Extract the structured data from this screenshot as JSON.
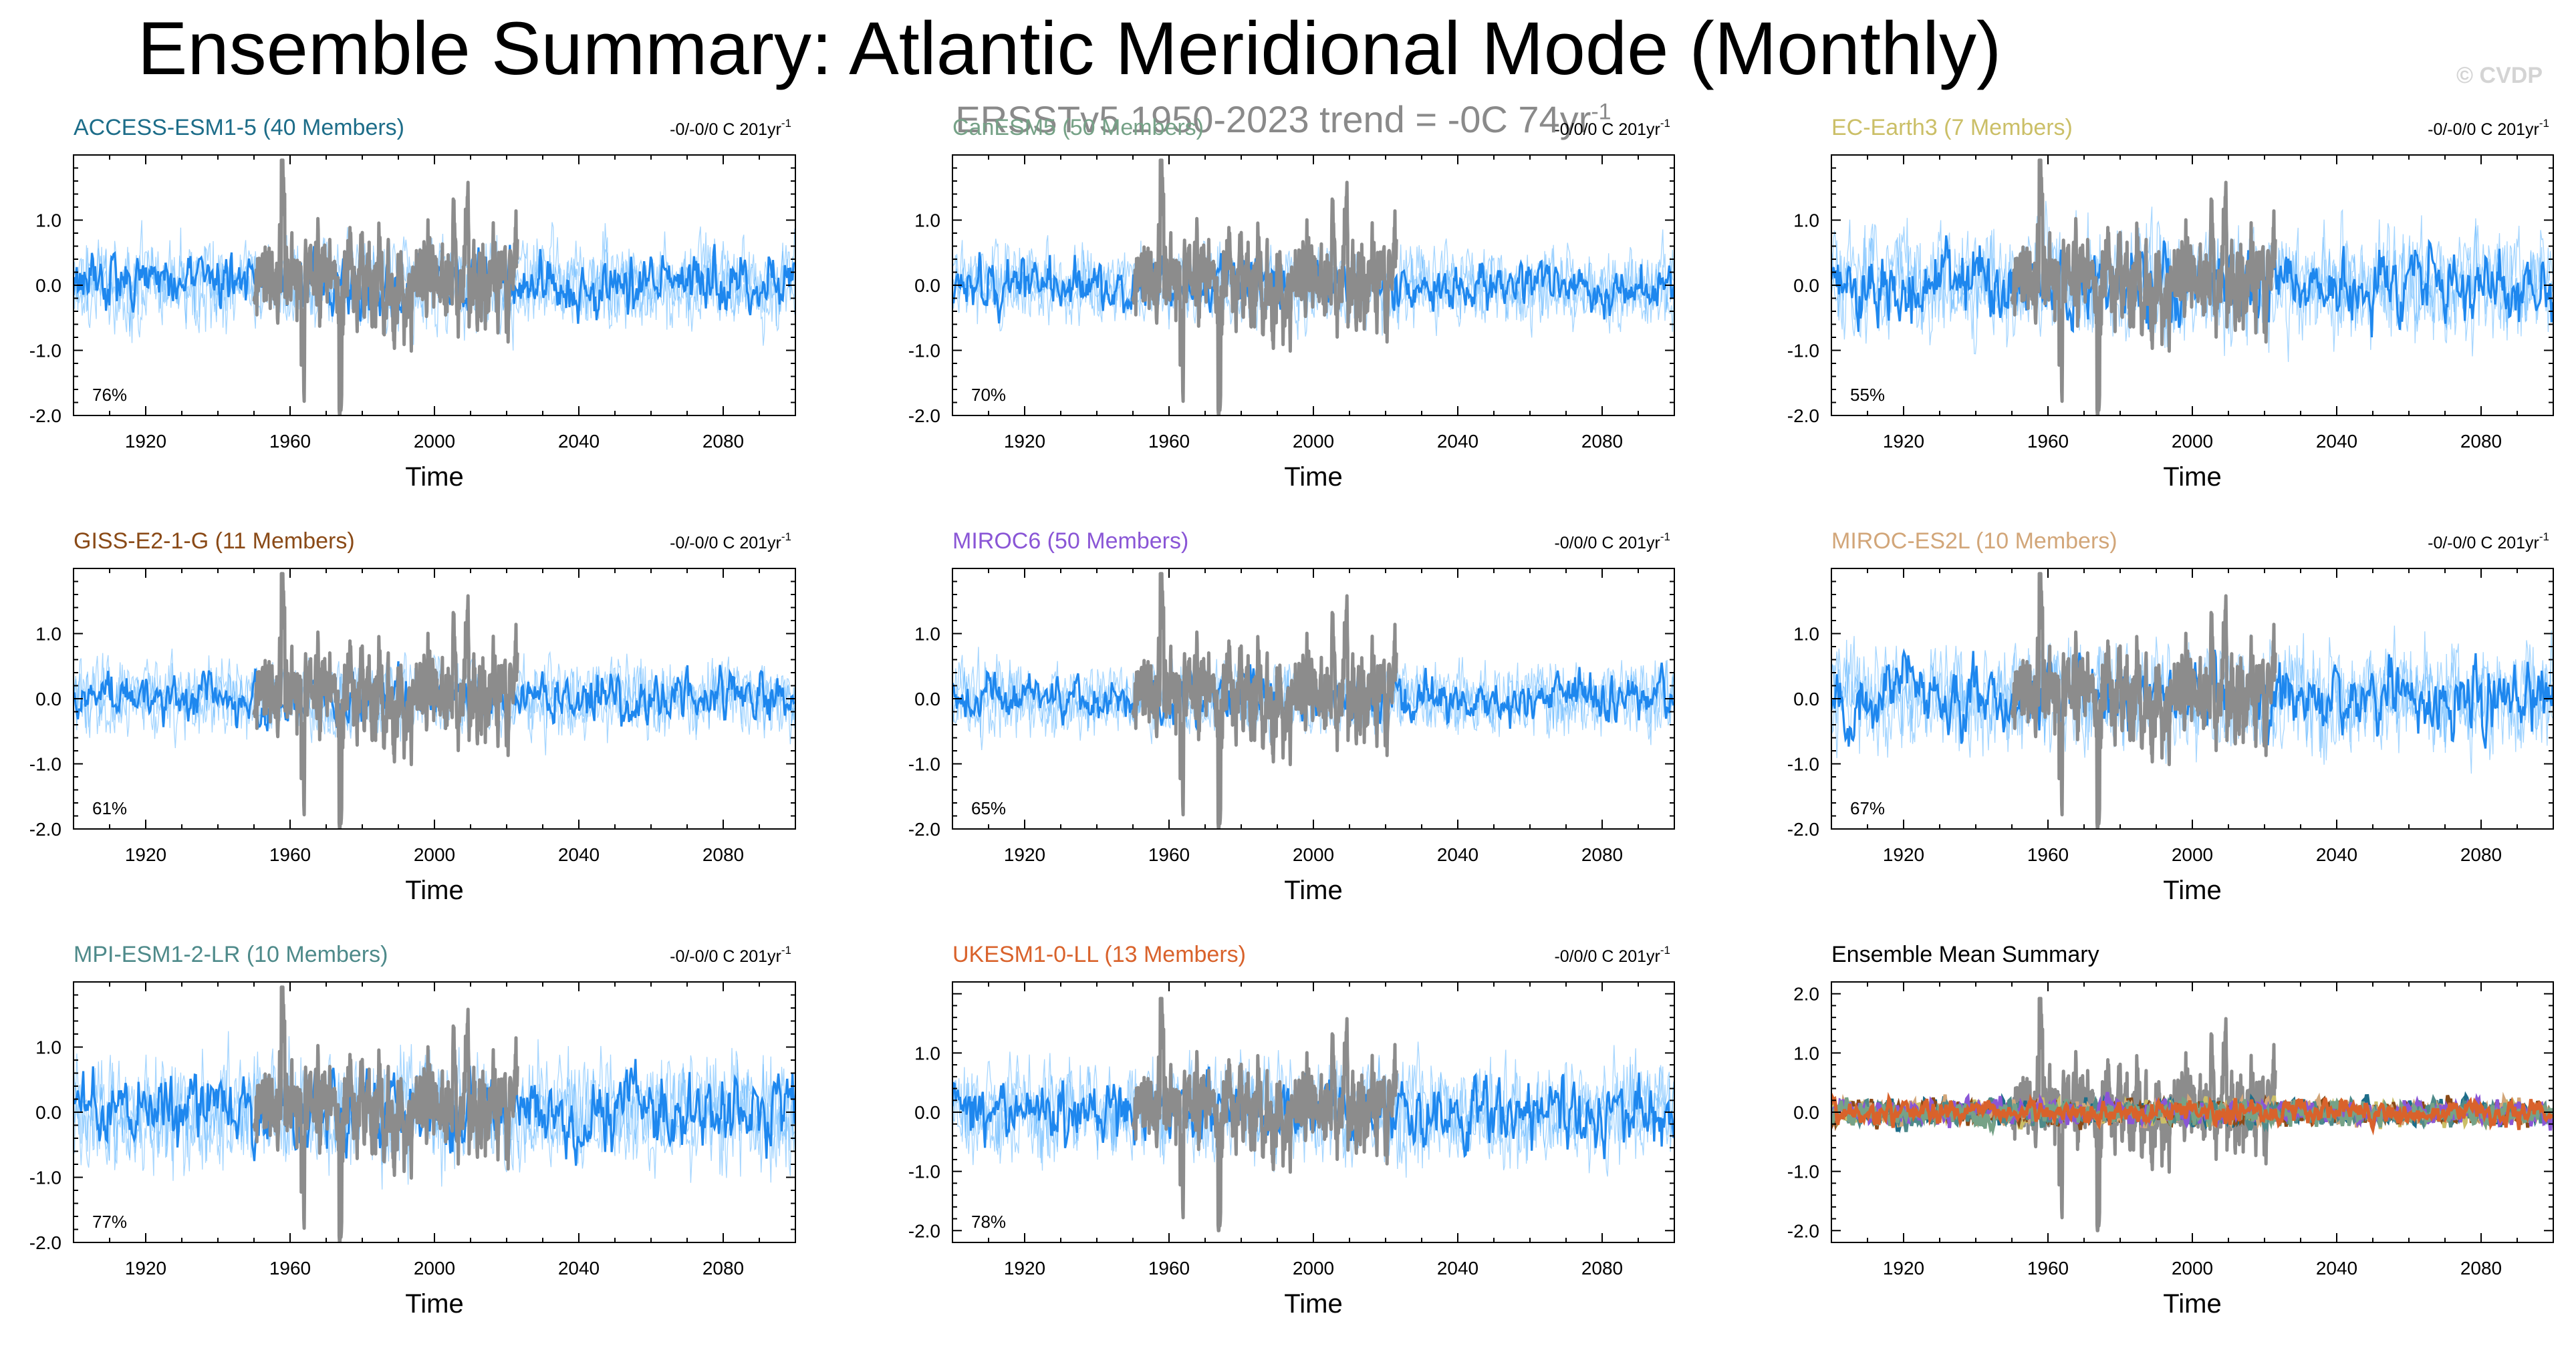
{
  "title": "Ensemble Summary: Atlantic Meridional Mode (Monthly)",
  "subtitle": {
    "text": "ERSSTv5 1950-2023 trend = -0C 74yr",
    "sup": "-1"
  },
  "watermark": "© CVDP",
  "colors": {
    "observed": "#8c8c8c",
    "ensemble_mean": "#1e87ee",
    "members": "#5db5ff"
  },
  "chart_data": [
    {
      "type": "line",
      "name": "ACCESS-ESM1-5",
      "title": "ACCESS-ESM1-5 (40 Members)",
      "title_color": "#1d6d89",
      "trend_label": "-0/-0/0 C 201yr",
      "trend_sup": "-1",
      "percent": "76%",
      "xlabel": "Time",
      "xlim": [
        1900,
        2100
      ],
      "ylim": [
        -2,
        2
      ],
      "xticks": [
        1920,
        1960,
        2000,
        2040,
        2080
      ],
      "yticks": [
        -2,
        -1,
        0,
        1
      ],
      "ytick_labels": [
        "-2.0",
        "-1.0",
        "0.0",
        "1.0"
      ],
      "amp": 0.32
    },
    {
      "type": "line",
      "name": "CanESM5",
      "title": "CanESM5 (50 Members)",
      "title_color": "#76a287",
      "trend_label": "-0/0/0 C 201yr",
      "trend_sup": "-1",
      "percent": "70%",
      "xlabel": "Time",
      "xlim": [
        1900,
        2100
      ],
      "ylim": [
        -2,
        2
      ],
      "xticks": [
        1920,
        1960,
        2000,
        2040,
        2080
      ],
      "yticks": [
        -2,
        -1,
        0,
        1
      ],
      "ytick_labels": [
        "-2.0",
        "-1.0",
        "0.0",
        "1.0"
      ],
      "amp": 0.28
    },
    {
      "type": "line",
      "name": "EC-Earth3",
      "title": "EC-Earth3 (7 Members)",
      "title_color": "#cbbf67",
      "trend_label": "-0/-0/0 C 201yr",
      "trend_sup": "-1",
      "percent": "55%",
      "xlabel": "Time",
      "xlim": [
        1900,
        2100
      ],
      "ylim": [
        -2,
        2
      ],
      "xticks": [
        1920,
        1960,
        2000,
        2040,
        2080
      ],
      "yticks": [
        -2,
        -1,
        0,
        1
      ],
      "ytick_labels": [
        "-2.0",
        "-1.0",
        "0.0",
        "1.0"
      ],
      "amp": 0.4
    },
    {
      "type": "line",
      "name": "GISS-E2-1-G",
      "title": "GISS-E2-1-G (11 Members)",
      "title_color": "#8a4a17",
      "trend_label": "-0/-0/0 C 201yr",
      "trend_sup": "-1",
      "percent": "61%",
      "xlabel": "Time",
      "xlim": [
        1900,
        2100
      ],
      "ylim": [
        -2,
        2
      ],
      "xticks": [
        1920,
        1960,
        2000,
        2040,
        2080
      ],
      "yticks": [
        -2,
        -1,
        0,
        1
      ],
      "ytick_labels": [
        "-2.0",
        "-1.0",
        "0.0",
        "1.0"
      ],
      "amp": 0.28
    },
    {
      "type": "line",
      "name": "MIROC6",
      "title": "MIROC6 (50 Members)",
      "title_color": "#8a56d6",
      "trend_label": "-0/0/0 C 201yr",
      "trend_sup": "-1",
      "percent": "65%",
      "xlabel": "Time",
      "xlim": [
        1900,
        2100
      ],
      "ylim": [
        -2,
        2
      ],
      "xticks": [
        1920,
        1960,
        2000,
        2040,
        2080
      ],
      "yticks": [
        -2,
        -1,
        0,
        1
      ],
      "ytick_labels": [
        "-2.0",
        "-1.0",
        "0.0",
        "1.0"
      ],
      "amp": 0.26
    },
    {
      "type": "line",
      "name": "MIROC-ES2L",
      "title": "MIROC-ES2L (10 Members)",
      "title_color": "#d2a679",
      "trend_label": "-0/-0/0 C 201yr",
      "trend_sup": "-1",
      "percent": "67%",
      "xlabel": "Time",
      "xlim": [
        1900,
        2100
      ],
      "ylim": [
        -2,
        2
      ],
      "xticks": [
        1920,
        1960,
        2000,
        2040,
        2080
      ],
      "yticks": [
        -2,
        -1,
        0,
        1
      ],
      "ytick_labels": [
        "-2.0",
        "-1.0",
        "0.0",
        "1.0"
      ],
      "amp": 0.38
    },
    {
      "type": "line",
      "name": "MPI-ESM1-2-LR",
      "title": "MPI-ESM1-2-LR (10 Members)",
      "title_color": "#4e8a8a",
      "trend_label": "-0/-0/0 C 201yr",
      "trend_sup": "-1",
      "percent": "77%",
      "xlabel": "Time",
      "xlim": [
        1900,
        2100
      ],
      "ylim": [
        -2,
        2
      ],
      "xticks": [
        1920,
        1960,
        2000,
        2040,
        2080
      ],
      "yticks": [
        -2,
        -1,
        0,
        1
      ],
      "ytick_labels": [
        "-2.0",
        "-1.0",
        "0.0",
        "1.0"
      ],
      "amp": 0.42
    },
    {
      "type": "line",
      "name": "UKESM1-0-LL",
      "title": "UKESM1-0-LL (13 Members)",
      "title_color": "#d9622b",
      "trend_label": "-0/0/0 C 201yr",
      "trend_sup": "-1",
      "percent": "78%",
      "xlabel": "Time",
      "xlim": [
        1900,
        2100
      ],
      "ylim": [
        -2.2,
        2.2
      ],
      "xticks": [
        1920,
        1960,
        2000,
        2040,
        2080
      ],
      "yticks": [
        -2,
        -1,
        0,
        1
      ],
      "ytick_labels": [
        "-2.0",
        "-1.0",
        "0.0",
        "1.0"
      ],
      "amp": 0.4
    },
    {
      "type": "line",
      "name": "Ensemble Mean Summary",
      "title": "Ensemble Mean Summary",
      "title_color": "#000000",
      "trend_label": "",
      "trend_sup": "",
      "percent": "",
      "xlabel": "Time",
      "xlim": [
        1900,
        2100
      ],
      "ylim": [
        -2.2,
        2.2
      ],
      "xticks": [
        1920,
        1960,
        2000,
        2040,
        2080
      ],
      "yticks": [
        -2,
        -1,
        0,
        1,
        2
      ],
      "ytick_labels": [
        "-2.0",
        "-1.0",
        "0.0",
        "1.0",
        "2.0"
      ],
      "amp": 0.15,
      "summary": true
    }
  ]
}
